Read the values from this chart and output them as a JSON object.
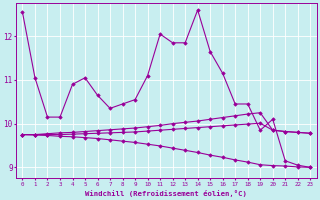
{
  "xlabel": "Windchill (Refroidissement éolien,°C)",
  "background_color": "#c8eef0",
  "line_color": "#990099",
  "grid_color": "#ffffff",
  "xlim": [
    -0.5,
    23.5
  ],
  "ylim": [
    8.75,
    12.75
  ],
  "yticks": [
    9,
    10,
    11,
    12
  ],
  "xticks": [
    0,
    1,
    2,
    3,
    4,
    5,
    6,
    7,
    8,
    9,
    10,
    11,
    12,
    13,
    14,
    15,
    16,
    17,
    18,
    19,
    20,
    21,
    22,
    23
  ],
  "line1_x": [
    0,
    1,
    2,
    3,
    4,
    5,
    6,
    7,
    8,
    9,
    10,
    11,
    12,
    13,
    14,
    15,
    16,
    17,
    18,
    19,
    20,
    21,
    22,
    23
  ],
  "line1_y": [
    12.55,
    11.05,
    10.15,
    10.15,
    10.9,
    11.05,
    10.65,
    10.35,
    10.45,
    10.55,
    11.1,
    12.05,
    11.85,
    11.85,
    12.6,
    11.65,
    11.15,
    10.45,
    10.45,
    9.85,
    10.1,
    9.15,
    9.05,
    9.0
  ],
  "line2_x": [
    0,
    1,
    2,
    3,
    4,
    5,
    6,
    7,
    8,
    9,
    10,
    11,
    12,
    13,
    14,
    15,
    16,
    17,
    18,
    19,
    20,
    21,
    22,
    23
  ],
  "line2_y": [
    9.75,
    9.75,
    9.77,
    9.79,
    9.8,
    9.82,
    9.84,
    9.86,
    9.88,
    9.9,
    9.93,
    9.96,
    10.0,
    10.03,
    10.06,
    10.1,
    10.14,
    10.18,
    10.22,
    10.25,
    9.85,
    9.82,
    9.8,
    9.78
  ],
  "line3_x": [
    0,
    1,
    2,
    3,
    4,
    5,
    6,
    7,
    8,
    9,
    10,
    11,
    12,
    13,
    14,
    15,
    16,
    17,
    18,
    19,
    20,
    21,
    22,
    23
  ],
  "line3_y": [
    9.75,
    9.75,
    9.75,
    9.75,
    9.76,
    9.77,
    9.78,
    9.79,
    9.8,
    9.81,
    9.83,
    9.85,
    9.87,
    9.89,
    9.91,
    9.93,
    9.95,
    9.97,
    9.99,
    10.01,
    9.85,
    9.82,
    9.8,
    9.78
  ],
  "line4_x": [
    0,
    1,
    2,
    3,
    4,
    5,
    6,
    7,
    8,
    9,
    10,
    11,
    12,
    13,
    14,
    15,
    16,
    17,
    18,
    19,
    20,
    21,
    22,
    23
  ],
  "line4_y": [
    9.75,
    9.74,
    9.73,
    9.71,
    9.7,
    9.68,
    9.66,
    9.63,
    9.6,
    9.57,
    9.53,
    9.49,
    9.44,
    9.39,
    9.34,
    9.28,
    9.23,
    9.17,
    9.12,
    9.06,
    9.04,
    9.03,
    9.01,
    9.0
  ]
}
